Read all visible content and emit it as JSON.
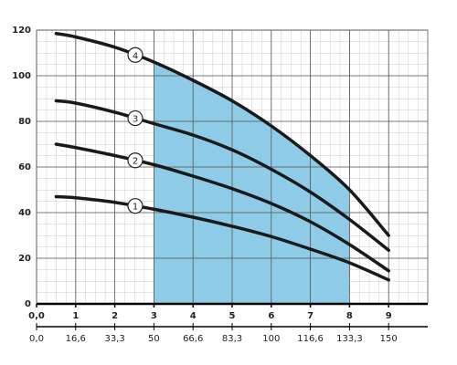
{
  "chart_data": {
    "type": "line",
    "x": [
      0.5,
      1,
      2,
      3,
      4,
      5,
      6,
      7,
      8,
      9
    ],
    "series": [
      {
        "name": "1",
        "color": "#1a1a1a",
        "values": [
          47,
          46.5,
          44.5,
          41.5,
          38,
          34,
          29.5,
          24,
          18,
          10.5
        ]
      },
      {
        "name": "2",
        "color": "#1a1a1a",
        "values": [
          70,
          68.5,
          65,
          61,
          56,
          50.5,
          44,
          36,
          26,
          14.5
        ]
      },
      {
        "name": "3",
        "color": "#1a1a1a",
        "values": [
          89,
          88,
          84,
          79,
          74,
          67.5,
          59,
          49,
          37,
          23.5
        ]
      },
      {
        "name": "4",
        "color": "#1a1a1a",
        "values": [
          118.5,
          117,
          112.5,
          106,
          98,
          89,
          78,
          65,
          50,
          30
        ]
      }
    ],
    "highlight": {
      "x": [
        3,
        8
      ],
      "color": "#8ecbe6"
    },
    "xlim": [
      0,
      10
    ],
    "ylim": [
      0,
      120
    ],
    "xticks": [
      {
        "value": 0,
        "label": "0,0"
      },
      1,
      2,
      3,
      4,
      5,
      6,
      7,
      8,
      9
    ],
    "x2ticks": [
      {
        "value": 0,
        "label": "0,0"
      },
      {
        "value": 1,
        "label": "16,6"
      },
      {
        "value": 2,
        "label": "33,3"
      },
      {
        "value": 3,
        "label": "50"
      },
      {
        "value": 4,
        "label": "66,6"
      },
      {
        "value": 5,
        "label": "83,3"
      },
      {
        "value": 6,
        "label": "100"
      },
      {
        "value": 7,
        "label": "116,6"
      },
      {
        "value": 8,
        "label": "133,3"
      },
      {
        "value": 9,
        "label": "150"
      }
    ],
    "yticks": [
      0,
      20,
      40,
      60,
      80,
      100,
      120
    ],
    "grid": true
  }
}
